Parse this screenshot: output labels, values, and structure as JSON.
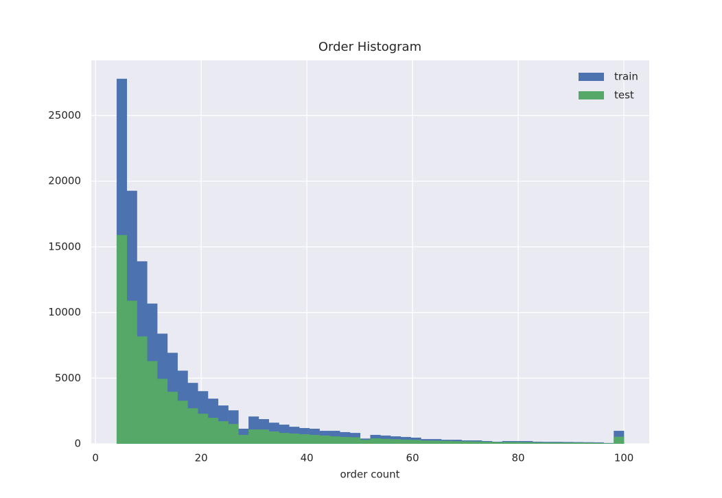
{
  "chart_data": {
    "type": "histogram",
    "title": "Order Histogram",
    "x_label": "order count",
    "bins": [
      4,
      5.92,
      7.84,
      9.76,
      11.68,
      13.6,
      15.52,
      17.44,
      19.36,
      21.28,
      23.2,
      25.12,
      27.04,
      28.96,
      30.88,
      32.8,
      34.72,
      36.64,
      38.56,
      40.48,
      42.4,
      44.32,
      46.24,
      48.16,
      50.08,
      52,
      53.92,
      55.84,
      57.76,
      59.68,
      61.6,
      63.52,
      65.44,
      67.36,
      69.28,
      71.2,
      73.12,
      75.04,
      76.96,
      78.88,
      80.8,
      82.72,
      84.64,
      86.56,
      88.48,
      90.4,
      92.32,
      94.24,
      96.16,
      98.08,
      100
    ],
    "series": [
      {
        "name": "train",
        "color": "#4c72b0",
        "values": [
          27800,
          19270,
          13900,
          10680,
          8390,
          6930,
          5570,
          4640,
          4010,
          3440,
          2920,
          2550,
          1150,
          2080,
          1880,
          1610,
          1460,
          1300,
          1200,
          1150,
          990,
          990,
          890,
          830,
          400,
          680,
          630,
          570,
          520,
          470,
          360,
          360,
          310,
          310,
          260,
          260,
          210,
          160,
          210,
          210,
          210,
          160,
          150,
          150,
          140,
          130,
          120,
          110,
          60,
          990
        ]
      },
      {
        "name": "test",
        "color": "#55a868",
        "values": [
          15900,
          10900,
          8180,
          6300,
          4950,
          3960,
          3280,
          2710,
          2290,
          1980,
          1720,
          1510,
          680,
          1090,
          1090,
          940,
          830,
          780,
          730,
          680,
          630,
          570,
          520,
          500,
          310,
          420,
          380,
          350,
          320,
          300,
          250,
          240,
          230,
          200,
          190,
          180,
          150,
          130,
          140,
          140,
          130,
          110,
          100,
          100,
          90,
          90,
          80,
          70,
          40,
          540
        ]
      }
    ],
    "xlim": [
      -0.8,
      104.8
    ],
    "xticks": [
      0,
      20,
      40,
      60,
      80,
      100
    ],
    "ylim": [
      0,
      29200
    ],
    "yticks": [
      0,
      5000,
      10000,
      15000,
      20000,
      25000
    ],
    "grid": true,
    "legend": "upper right"
  }
}
